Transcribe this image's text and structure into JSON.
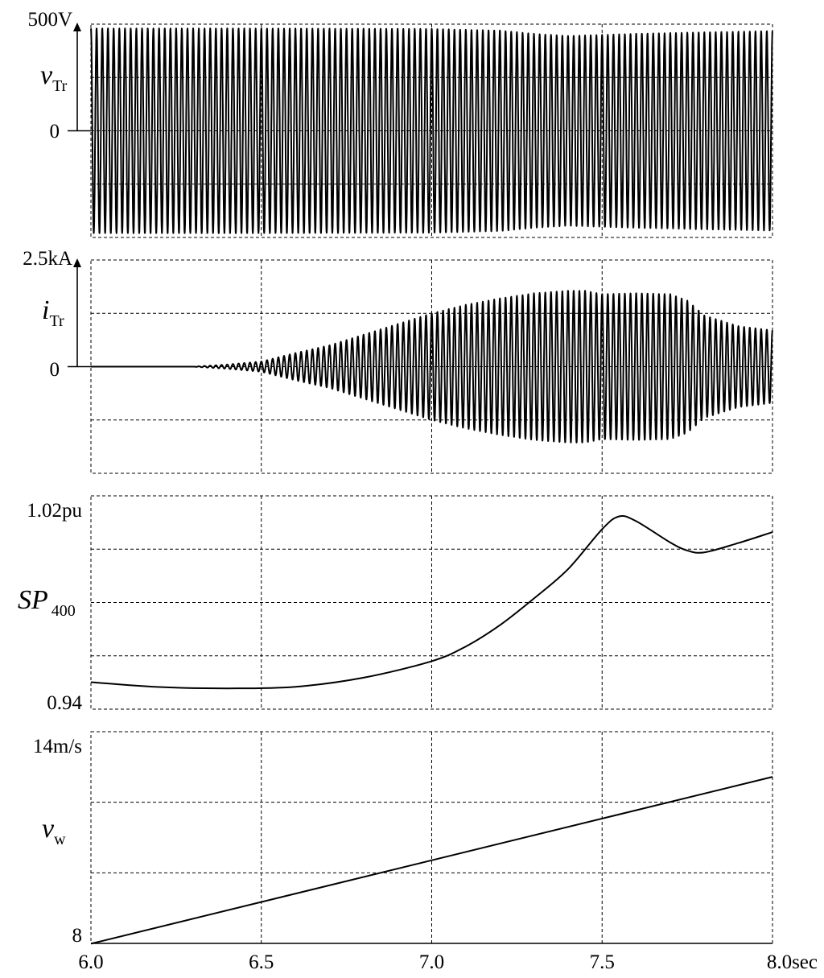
{
  "chart_data": [
    {
      "type": "line",
      "panel": "v_Tr",
      "ylabel_main": "v",
      "ylabel_sub": "Tr",
      "ytick_top": "500V",
      "ytick_zero": "0",
      "ylim": [
        -500,
        500
      ],
      "x_range": [
        6.0,
        8.0
      ],
      "waveform": "oscillation",
      "frequency_hz": 60,
      "envelope": {
        "t": [
          6.0,
          6.5,
          7.0,
          7.2,
          7.3,
          7.4,
          7.5,
          7.6,
          7.8,
          8.0
        ],
        "amplitude": [
          480,
          480,
          478,
          470,
          455,
          445,
          450,
          455,
          462,
          468
        ]
      }
    },
    {
      "type": "line",
      "panel": "i_Tr",
      "ylabel_main": "i",
      "ylabel_sub": "Tr",
      "ytick_top": "2.5kA",
      "ytick_zero": "0",
      "ylim": [
        -2.5,
        2.5
      ],
      "x_range": [
        6.0,
        8.0
      ],
      "waveform": "oscillation",
      "frequency_hz": 60,
      "envelope": {
        "t": [
          6.0,
          6.3,
          6.4,
          6.5,
          6.6,
          6.7,
          6.8,
          6.9,
          7.0,
          7.1,
          7.2,
          7.3,
          7.4,
          7.45,
          7.5,
          7.6,
          7.7,
          7.75,
          7.8,
          7.9,
          8.0
        ],
        "amplitude": [
          0.0,
          0.0,
          0.05,
          0.12,
          0.32,
          0.5,
          0.75,
          1.0,
          1.25,
          1.45,
          1.6,
          1.72,
          1.78,
          1.78,
          1.7,
          1.72,
          1.7,
          1.55,
          1.2,
          0.95,
          0.85
        ]
      }
    },
    {
      "type": "line",
      "panel": "SP_400",
      "ylabel_main": "SP",
      "ylabel_sub": "400",
      "ytick_top": "1.02pu",
      "ytick_bottom": "0.94",
      "ylim": [
        0.94,
        1.02
      ],
      "x": [
        6.0,
        6.2,
        6.4,
        6.6,
        6.8,
        7.0,
        7.1,
        7.2,
        7.3,
        7.4,
        7.5,
        7.55,
        7.6,
        7.7,
        7.75,
        7.8,
        7.9,
        8.0
      ],
      "y": [
        0.9501,
        0.9483,
        0.9478,
        0.9484,
        0.9518,
        0.958,
        0.9635,
        0.9715,
        0.9815,
        0.9925,
        1.0075,
        1.0123,
        1.0105,
        1.0025,
        0.9995,
        0.9988,
        1.0023,
        1.0064
      ]
    },
    {
      "type": "line",
      "panel": "v_w",
      "ylabel_main": "v",
      "ylabel_sub": "w",
      "ytick_top": "14m/s",
      "ytick_bottom": "8",
      "ylim": [
        8,
        14
      ],
      "x": [
        6.0,
        8.0
      ],
      "y": [
        7.99,
        12.72
      ]
    }
  ],
  "x_axis": {
    "ticks": [
      "6.0",
      "6.5",
      "7.0",
      "7.5",
      "8.0sec"
    ],
    "values": [
      6.0,
      6.5,
      7.0,
      7.5,
      8.0
    ]
  }
}
